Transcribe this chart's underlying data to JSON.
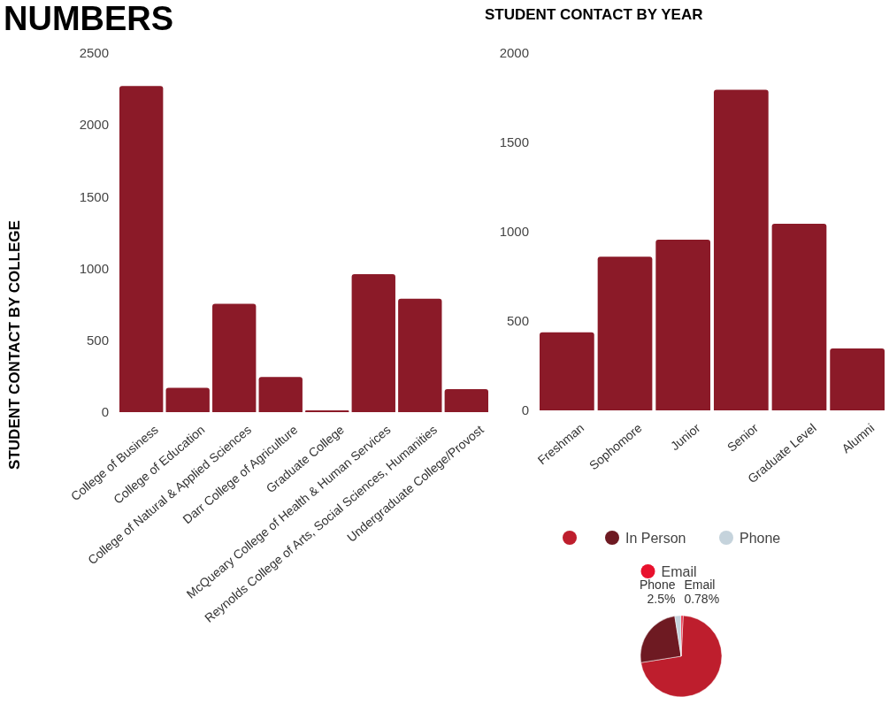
{
  "chart_data": [
    {
      "type": "bar",
      "title": "NUMBERS",
      "ylabel": "STUDENT CONTACT  BY COLLEGE",
      "categories": [
        "College of Business",
        "College of Education",
        "College of Natural & Applied Sciences",
        "Darr College of Agriculture",
        "Graduate College",
        "McQueary College of Health & Human Services",
        "Reynolds College of Arts, Social Sciences, Humanities",
        "Undergraduate College/Provost"
      ],
      "values": [
        2270,
        170,
        755,
        245,
        12,
        960,
        790,
        160
      ],
      "color": "#8b1a28",
      "ylim": [
        0,
        2500
      ],
      "yticks": [
        0,
        500,
        1000,
        1500,
        2000,
        2500
      ],
      "grid": false
    },
    {
      "type": "bar",
      "title": "STUDENT CONTACT  BY YEAR",
      "categories": [
        "Freshman",
        "Sophomore",
        "Junior",
        "Senior",
        "Graduate Level",
        "Alumni"
      ],
      "values": [
        437,
        860,
        955,
        1795,
        1045,
        347
      ],
      "color": "#8b1a28",
      "ylim": [
        0,
        2000
      ],
      "yticks": [
        0,
        500,
        1000,
        1500,
        2000
      ],
      "grid": false
    },
    {
      "type": "pie",
      "categories": [
        null,
        "In Person",
        "Phone",
        "Email"
      ],
      "values": [
        71.72,
        25,
        2.5,
        0.78
      ],
      "colors": [
        "#be1e2d",
        "#6e1a22",
        "#c5d3dc",
        "#e8112d"
      ],
      "value_labels": [
        null,
        null,
        "2.5%",
        "0.78%"
      ],
      "legend": "top"
    }
  ]
}
